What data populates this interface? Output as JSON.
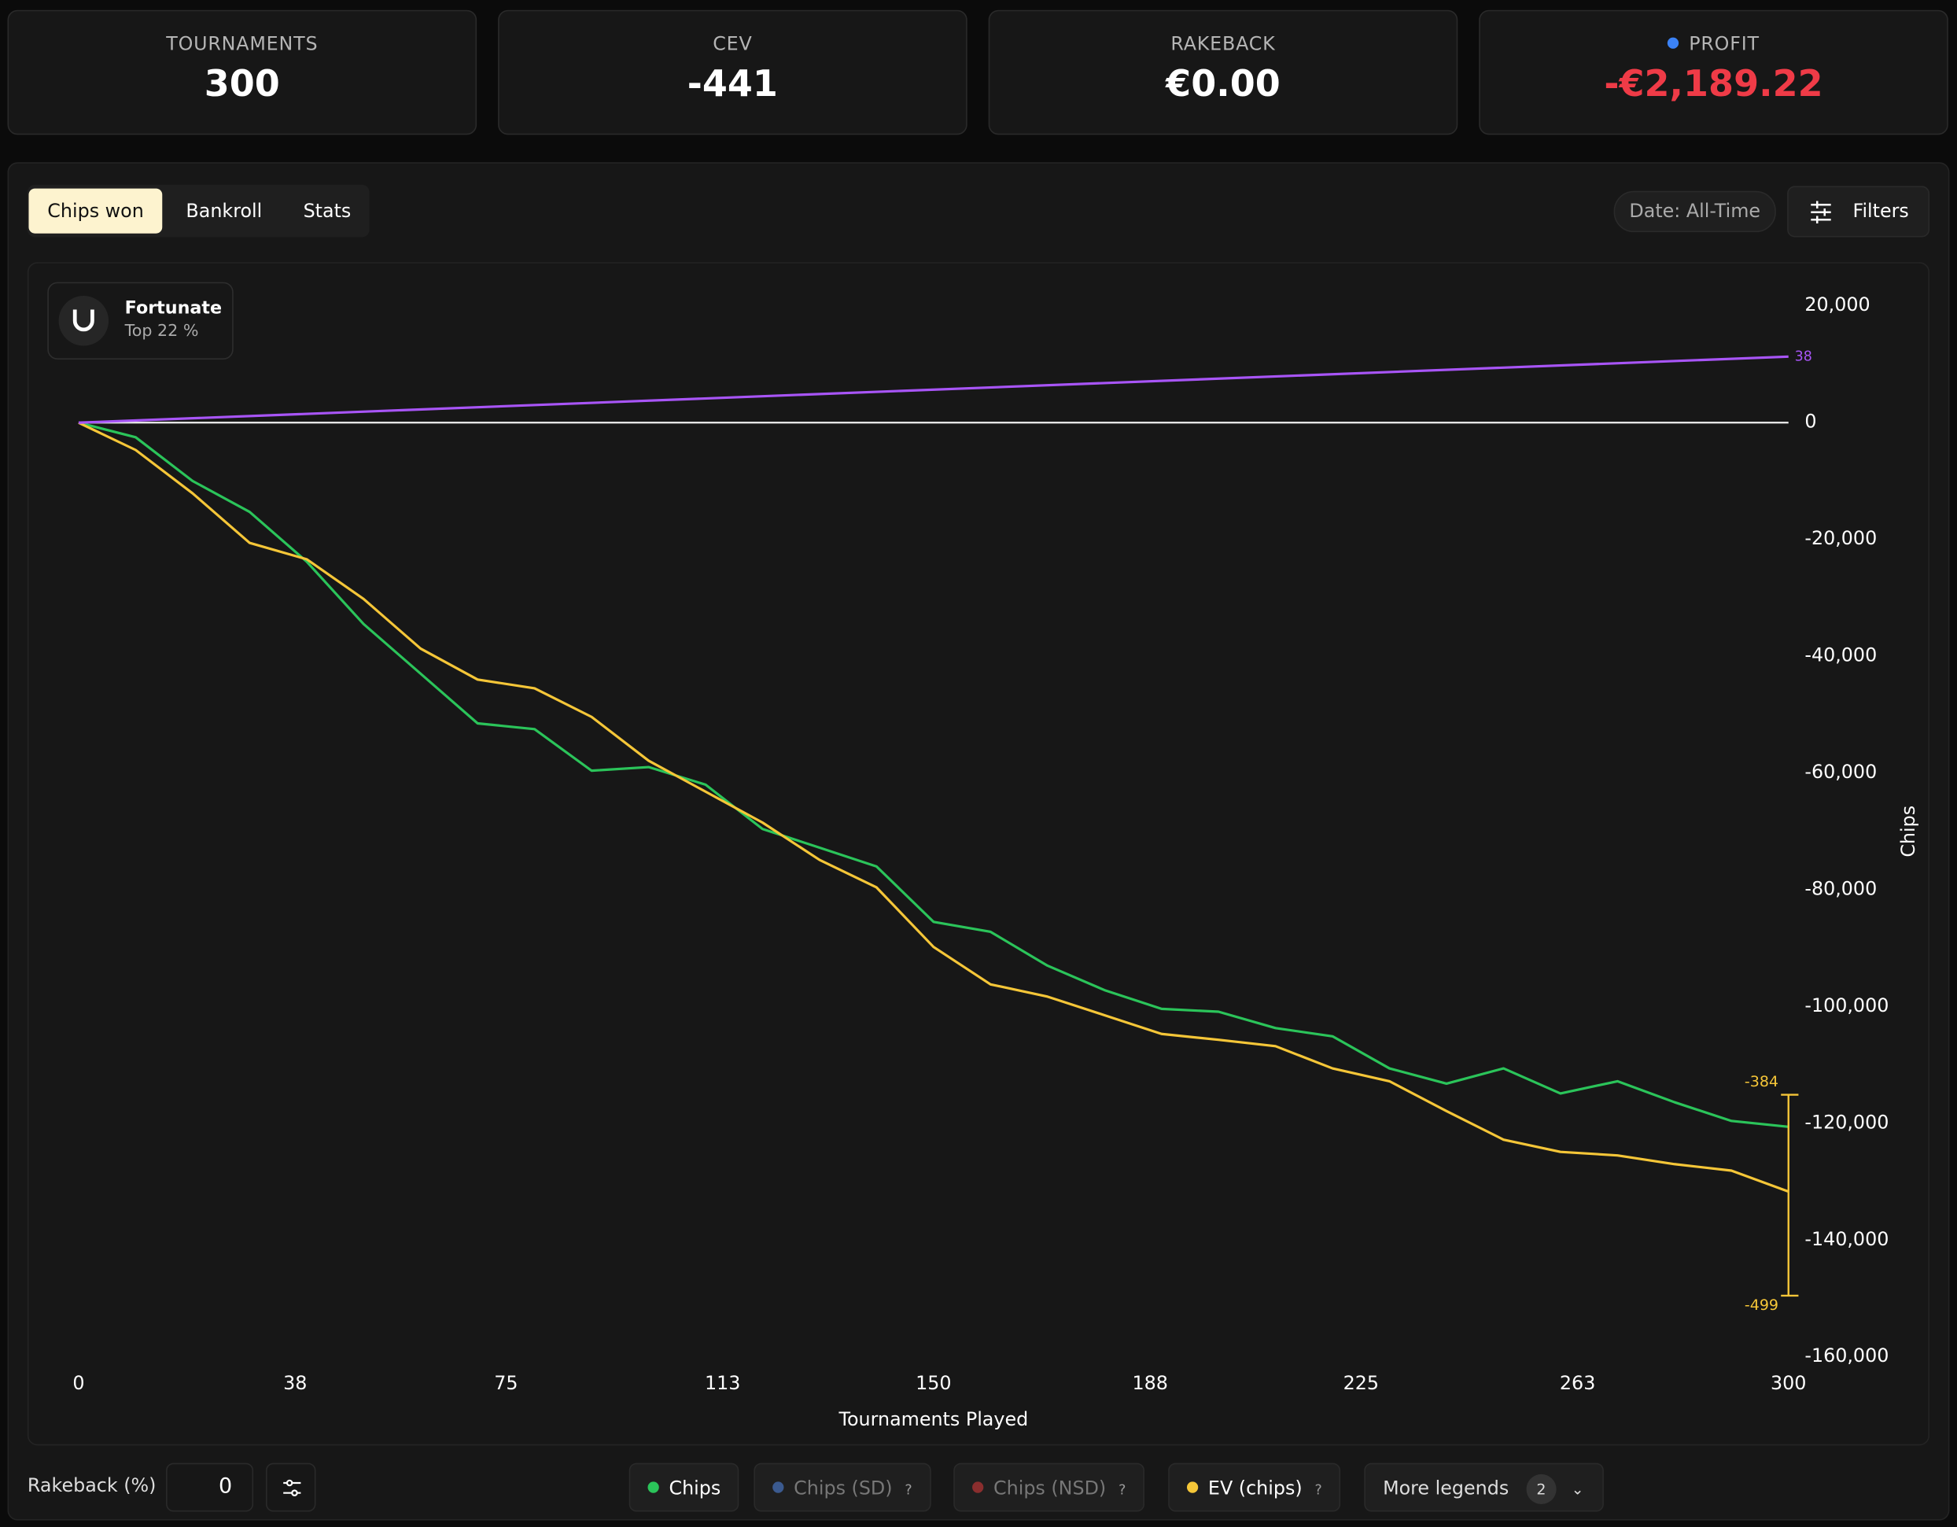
{
  "stats": [
    {
      "label": "TOURNAMENTS",
      "value": "300"
    },
    {
      "label": "CEV",
      "value": "-441"
    },
    {
      "label": "RAKEBACK",
      "value": "€0.00"
    },
    {
      "label": "PROFIT",
      "value": "-€2,189.22"
    }
  ],
  "tabs": [
    "Chips won",
    "Bankroll",
    "Stats"
  ],
  "date_filter": "Date: All-Time",
  "filters_button": "Filters",
  "badge": {
    "title": "Fortunate",
    "subtitle": "Top 22 %"
  },
  "rakeback": {
    "label": "Rakeback (%)",
    "value": "0"
  },
  "help_mark": "?",
  "more_legends": {
    "label": "More legends",
    "count": "2"
  },
  "inactive_series": [
    {
      "name": "Chips (SD)",
      "color": "#3b5a8f"
    },
    {
      "name": "Chips (NSD)",
      "color": "#8a2e2e"
    }
  ],
  "chart_data": {
    "type": "line",
    "x": [
      0,
      10,
      20,
      30,
      40,
      50,
      60,
      70,
      80,
      90,
      100,
      110,
      120,
      130,
      140,
      150,
      160,
      170,
      180,
      190,
      200,
      210,
      220,
      230,
      240,
      250,
      260,
      270,
      280,
      290,
      300
    ],
    "series": [
      {
        "name": "Chips",
        "color": "#2bc45a",
        "values": [
          0,
          -2500,
          -10000,
          -15300,
          -23800,
          -34500,
          -43000,
          -51500,
          -52500,
          -59600,
          -59000,
          -62000,
          -69600,
          -72800,
          -76000,
          -85500,
          -87200,
          -93000,
          -97200,
          -100400,
          -100900,
          -103700,
          -105100,
          -110600,
          -113200,
          -110600,
          -114900,
          -112800,
          -116400,
          -119600,
          -120600
        ]
      },
      {
        "name": "EV (chips)",
        "color": "#f5c638",
        "values": [
          0,
          -4700,
          -12100,
          -20600,
          -23400,
          -30200,
          -38700,
          -44000,
          -45500,
          -50400,
          -57900,
          -63200,
          -68500,
          -74900,
          -79600,
          -89800,
          -96200,
          -98300,
          -101500,
          -104700,
          -105700,
          -106800,
          -110600,
          -112800,
          -117900,
          -122800,
          -124900,
          -125500,
          -127000,
          -128100,
          -131700
        ]
      },
      {
        "color": "#a855f7",
        "x": [
          0,
          300
        ],
        "values": [
          0,
          11300
        ],
        "end_label": "38"
      }
    ],
    "range_labels": {
      "color": "#f5c638",
      "top": "-384",
      "bottom": "-499"
    },
    "xlim": [
      0,
      300
    ],
    "xticks": [
      0,
      38,
      75,
      113,
      150,
      188,
      225,
      263,
      300
    ],
    "ylim": [
      -160000,
      20000
    ],
    "yticks": [
      {
        "value": 20000,
        "label": "20,000"
      },
      0,
      {
        "value": -20000,
        "label": "-20,000"
      },
      {
        "value": -40000,
        "label": "-40,000"
      },
      {
        "value": -60000,
        "label": "-60,000"
      },
      {
        "value": -80000,
        "label": "-80,000"
      },
      {
        "value": -100000,
        "label": "-100,000"
      },
      {
        "value": -120000,
        "label": "-120,000"
      },
      {
        "value": -140000,
        "label": "-140,000"
      },
      {
        "value": -160000,
        "label": "-160,000"
      }
    ],
    "zero_line": true,
    "xlabel": "Tournaments Played",
    "ylabel": "Chips"
  }
}
